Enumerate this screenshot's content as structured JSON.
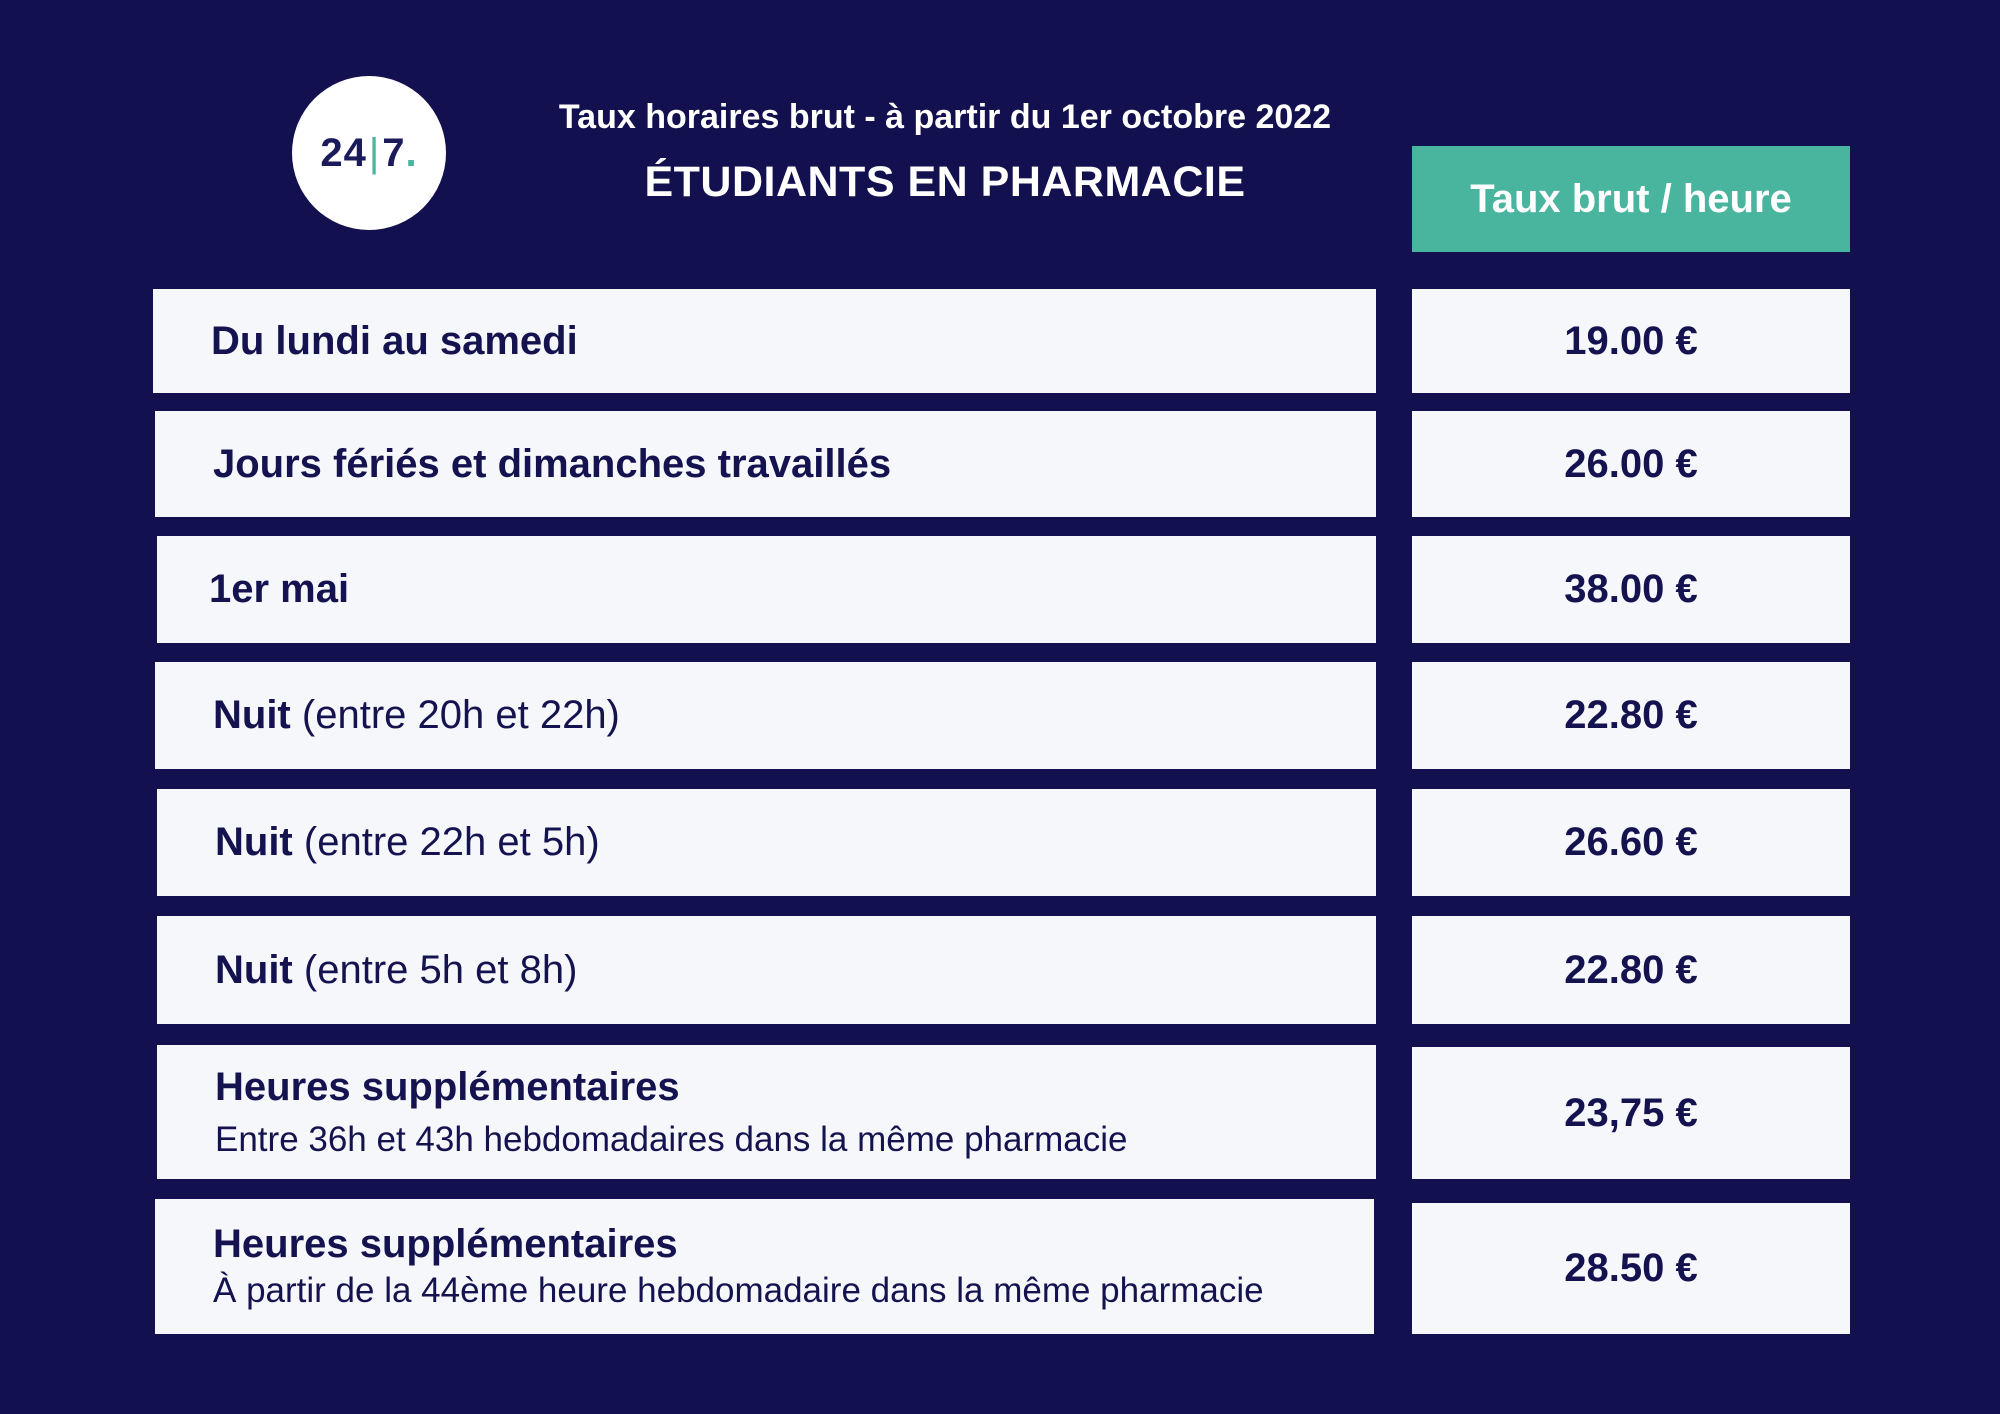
{
  "logo": {
    "left": "24",
    "right": "7",
    "dot": "."
  },
  "header": {
    "subtitle": "Taux horaires brut - à partir du 1er octobre 2022",
    "title": "ÉTUDIANTS EN PHARMACIE",
    "column_header": "Taux brut / heure"
  },
  "rows": [
    {
      "label": "Du lundi au samedi",
      "value": "19.00 €"
    },
    {
      "label": "Jours fériés et dimanches travaillés",
      "value": "26.00 €"
    },
    {
      "label": "1er mai",
      "value": "38.00 €"
    },
    {
      "label": "Nuit",
      "note": "(entre 20h et 22h)",
      "value": "22.80 €"
    },
    {
      "label": "Nuit",
      "note": "(entre 22h et 5h)",
      "value": "26.60 €"
    },
    {
      "label": "Nuit",
      "note": "(entre 5h et 8h)",
      "value": "22.80 €"
    },
    {
      "label": "Heures supplémentaires",
      "note": "Entre 36h et 43h hebdomadaires dans la même pharmacie",
      "value": "23,75 €"
    },
    {
      "label": "Heures supplémentaires",
      "note": "À partir de la 44ème heure hebdomadaire dans la même pharmacie",
      "value": "28.50 €"
    }
  ],
  "colors": {
    "background": "#12104e",
    "accent": "#49b59e",
    "cell": "#f6f7fb",
    "text": "#14134f"
  }
}
